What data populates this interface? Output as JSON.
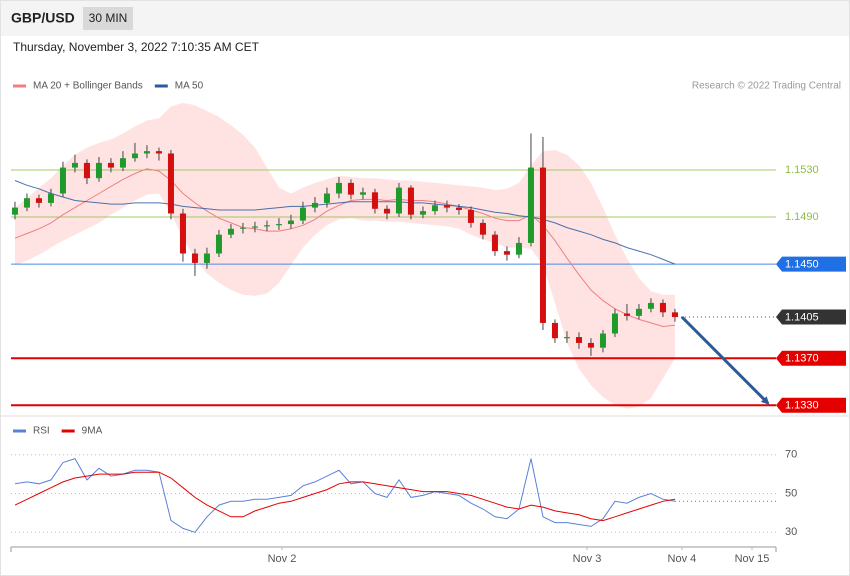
{
  "chart_data": {
    "type": "candlestick",
    "title": "GBP/USD",
    "timeframe": "30 MIN",
    "subtitle": "Thursday, November 3, 2022 7:10:35 AM CET",
    "source": "Research © 2022 Trading Central",
    "up_color": "#1f9b2c",
    "down_color": "#d40f0f",
    "band_color": "#ffe3e3",
    "ylim": [
      1.1326,
      1.1592
    ],
    "xlim": [
      -0.33,
      63.42
    ],
    "xticks": [
      {
        "value": 22.25,
        "label": "Nov 2"
      },
      {
        "value": 47.67,
        "label": "Nov 3"
      },
      {
        "value": 55.58,
        "label": "Nov 4"
      },
      {
        "value": 61.42,
        "label": "Nov 15"
      }
    ],
    "candles": {
      "open": [
        1.1492,
        1.1498,
        1.1506,
        1.1502,
        1.151,
        1.1532,
        1.1536,
        1.1523,
        1.1536,
        1.1532,
        1.154,
        1.1544,
        1.1546,
        1.1544,
        1.1493,
        1.1459,
        1.1451,
        1.1459,
        1.1475,
        1.148,
        1.1481,
        1.1482,
        1.1483,
        1.1484,
        1.1487,
        1.1498,
        1.1502,
        1.151,
        1.1519,
        1.1509,
        1.1511,
        1.1497,
        1.1493,
        1.1515,
        1.1492,
        1.1495,
        1.15,
        1.1498,
        1.1496,
        1.1485,
        1.1475,
        1.1461,
        1.1458,
        1.1468,
        1.1532,
        1.14,
        1.1387,
        1.1388,
        1.1383,
        1.1379,
        1.1391,
        1.1408,
        1.1406,
        1.1412,
        1.1417,
        1.1409
      ],
      "high": [
        1.1503,
        1.151,
        1.1509,
        1.1514,
        1.1537,
        1.1543,
        1.1539,
        1.1541,
        1.154,
        1.1546,
        1.1553,
        1.1551,
        1.1549,
        1.1547,
        1.1497,
        1.1463,
        1.1464,
        1.1479,
        1.1484,
        1.1485,
        1.1486,
        1.1487,
        1.1489,
        1.1492,
        1.1503,
        1.1507,
        1.1515,
        1.1524,
        1.1522,
        1.1515,
        1.1514,
        1.15,
        1.1519,
        1.1517,
        1.1499,
        1.1504,
        1.1504,
        1.1501,
        1.1499,
        1.1488,
        1.1478,
        1.1465,
        1.1473,
        1.1561,
        1.1558,
        1.1403,
        1.1393,
        1.1392,
        1.1387,
        1.1394,
        1.1412,
        1.1416,
        1.1416,
        1.1421,
        1.142,
        1.1412
      ],
      "low": [
        1.1488,
        1.1495,
        1.1498,
        1.1499,
        1.1507,
        1.1528,
        1.1518,
        1.152,
        1.1528,
        1.1529,
        1.1537,
        1.154,
        1.1538,
        1.1488,
        1.1452,
        1.144,
        1.1446,
        1.1456,
        1.1472,
        1.1476,
        1.1477,
        1.1478,
        1.1479,
        1.148,
        1.1484,
        1.1494,
        1.1498,
        1.1506,
        1.1505,
        1.1505,
        1.1493,
        1.1488,
        1.149,
        1.1488,
        1.1489,
        1.1492,
        1.1494,
        1.1492,
        1.1481,
        1.1471,
        1.1457,
        1.1453,
        1.1455,
        1.1465,
        1.1394,
        1.1383,
        1.1383,
        1.1378,
        1.1372,
        1.1375,
        1.1388,
        1.1402,
        1.1403,
        1.1409,
        1.1405,
        1.1401
      ],
      "close": [
        1.1498,
        1.1506,
        1.1502,
        1.151,
        1.1532,
        1.1536,
        1.1523,
        1.1536,
        1.1532,
        1.154,
        1.1544,
        1.1546,
        1.1544,
        1.1493,
        1.1459,
        1.1451,
        1.1459,
        1.1475,
        1.148,
        1.1481,
        1.1482,
        1.1483,
        1.1484,
        1.1487,
        1.1498,
        1.1502,
        1.151,
        1.1519,
        1.1509,
        1.1511,
        1.1497,
        1.1493,
        1.1515,
        1.1492,
        1.1495,
        1.15,
        1.1498,
        1.1496,
        1.1485,
        1.1475,
        1.1461,
        1.1458,
        1.1468,
        1.1532,
        1.14,
        1.1387,
        1.1388,
        1.1383,
        1.1379,
        1.1391,
        1.1408,
        1.1406,
        1.1412,
        1.1417,
        1.1409,
        1.1405
      ]
    },
    "series": [
      {
        "name": "MA 20 + Bollinger Bands",
        "color": "#ef7f7f",
        "values": [
          1.1472,
          1.1476,
          1.148,
          1.1485,
          1.1492,
          1.1498,
          1.1504,
          1.151,
          1.1516,
          1.1522,
          1.1527,
          1.1531,
          1.1529,
          1.1521,
          1.151,
          1.1502,
          1.1495,
          1.1489,
          1.1485,
          1.1481,
          1.148,
          1.1478,
          1.1478,
          1.148,
          1.1483,
          1.1488,
          1.1495,
          1.15,
          1.1504,
          1.1505,
          1.1505,
          1.1504,
          1.1505,
          1.1504,
          1.1504,
          1.1503,
          1.1501,
          1.1499,
          1.1496,
          1.1493,
          1.1489,
          1.1487,
          1.1487,
          1.1492,
          1.1483,
          1.147,
          1.1455,
          1.1441,
          1.1428,
          1.1419,
          1.1412,
          1.1407,
          1.1403,
          1.14,
          1.1397,
          1.1398
        ],
        "upper": [
          1.1498,
          1.1506,
          1.1515,
          1.1523,
          1.1534,
          1.1543,
          1.1549,
          1.1553,
          1.1556,
          1.1561,
          1.1567,
          1.1572,
          1.1574,
          1.1584,
          1.1587,
          1.1585,
          1.158,
          1.1575,
          1.1568,
          1.156,
          1.1549,
          1.1532,
          1.1515,
          1.151,
          1.1515,
          1.1519,
          1.1522,
          1.1525,
          1.1524,
          1.1523,
          1.1523,
          1.1522,
          1.1521,
          1.1521,
          1.152,
          1.1519,
          1.1518,
          1.1517,
          1.1516,
          1.1515,
          1.1513,
          1.1514,
          1.1519,
          1.1534,
          1.1546,
          1.1547,
          1.1543,
          1.1534,
          1.1519,
          1.1498,
          1.1475,
          1.1455,
          1.1438,
          1.1427,
          1.1424,
          1.1424
        ],
        "lower": [
          1.1449,
          1.1453,
          1.1458,
          1.1464,
          1.147,
          1.1475,
          1.148,
          1.1485,
          1.1492,
          1.1498,
          1.1504,
          1.1509,
          1.151,
          1.1493,
          1.1472,
          1.1455,
          1.1442,
          1.1434,
          1.1428,
          1.1424,
          1.1423,
          1.1425,
          1.1434,
          1.1449,
          1.1464,
          1.1475,
          1.1483,
          1.1488,
          1.1489,
          1.1487,
          1.1487,
          1.1486,
          1.1486,
          1.1485,
          1.1484,
          1.1483,
          1.1482,
          1.148,
          1.1475,
          1.1471,
          1.1468,
          1.1464,
          1.1464,
          1.1463,
          1.1449,
          1.1417,
          1.1383,
          1.1361,
          1.1347,
          1.1337,
          1.133,
          1.1327,
          1.1329,
          1.1336,
          1.1353,
          1.137
        ]
      },
      {
        "name": "MA 50",
        "color": "#2b5aa0",
        "values": [
          1.1521,
          1.1517,
          1.1514,
          1.151,
          1.1507,
          1.1504,
          1.1503,
          1.1502,
          1.1501,
          1.1501,
          1.1502,
          1.1502,
          1.1502,
          1.1501,
          1.1499,
          1.1498,
          1.1497,
          1.1496,
          1.1496,
          1.1496,
          1.1496,
          1.1497,
          1.1498,
          1.1499,
          1.1499,
          1.15,
          1.1501,
          1.1502,
          1.1503,
          1.1503,
          1.1503,
          1.1503,
          1.1503,
          1.1502,
          1.1502,
          1.1501,
          1.15,
          1.1499,
          1.1498,
          1.1496,
          1.1494,
          1.1493,
          1.1491,
          1.149,
          1.1488,
          1.1485,
          1.1481,
          1.1478,
          1.1475,
          1.1471,
          1.1468,
          1.1464,
          1.1461,
          1.1458,
          1.1454,
          1.145
        ]
      }
    ],
    "levels": [
      {
        "value": 1.153,
        "label": "1.1530",
        "color": "#8dbf45",
        "boxed": false,
        "dotted": false,
        "weight": "thin"
      },
      {
        "value": 1.149,
        "label": "1.1490",
        "color": "#8dbf45",
        "boxed": false,
        "dotted": false,
        "weight": "thin"
      },
      {
        "value": 1.145,
        "label": "1.1450",
        "color": "#1f6fe5",
        "boxed": true,
        "dotted": false,
        "weight": "thin"
      },
      {
        "value": 1.1405,
        "label": "1.1405",
        "color": "#333333",
        "boxed": true,
        "dotted": true,
        "weight": "thin"
      },
      {
        "value": 1.137,
        "label": "1.1370",
        "color": "#e50000",
        "boxed": true,
        "dotted": false,
        "weight": "bold"
      },
      {
        "value": 1.133,
        "label": "1.1330",
        "color": "#e50000",
        "boxed": true,
        "dotted": false,
        "weight": "bold"
      }
    ],
    "forecast_color": "#2d5b96",
    "rsi": {
      "ylim": [
        26,
        74
      ],
      "yticks": [
        30,
        50,
        70
      ],
      "series": [
        {
          "name": "RSI",
          "color": "#5b80d8",
          "values": [
            55,
            56,
            55,
            57,
            66,
            68,
            57,
            63,
            59,
            60,
            62,
            62,
            61,
            36,
            32,
            30,
            38,
            44,
            46,
            46,
            47,
            47,
            48,
            49,
            54,
            56,
            59,
            62,
            55,
            56,
            50,
            48,
            57,
            48,
            49,
            51,
            50,
            49,
            45,
            42,
            38,
            37,
            42,
            68,
            38,
            35,
            35,
            34,
            33,
            37,
            46,
            45,
            48,
            50,
            47,
            46
          ]
        },
        {
          "name": "9MA",
          "color": "#e50000",
          "values": [
            44,
            47,
            50,
            53,
            56,
            58,
            59,
            60,
            60,
            60,
            61,
            61,
            61,
            58,
            53,
            48,
            44,
            41,
            38,
            38,
            41,
            43,
            45,
            46,
            48,
            50,
            52,
            55,
            56,
            56,
            55,
            54,
            53,
            52,
            51,
            51,
            51,
            50,
            49,
            47,
            45,
            43,
            42,
            44,
            43,
            41,
            40,
            39,
            37,
            36,
            38,
            40,
            42,
            44,
            46,
            47
          ]
        }
      ]
    }
  }
}
